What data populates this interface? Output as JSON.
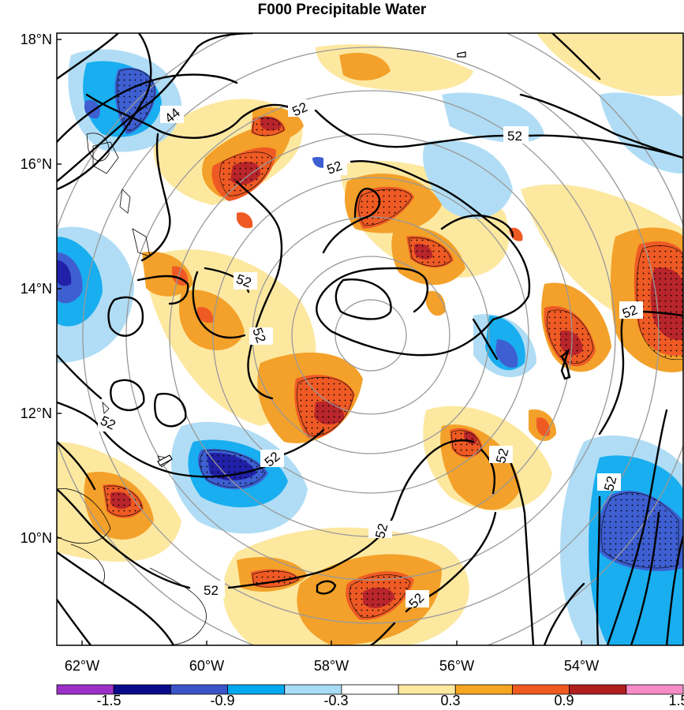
{
  "title": "F000 Precipitable Water",
  "lat_labels": [
    "18°N",
    "16°N",
    "14°N",
    "12°N",
    "10°N"
  ],
  "lon_labels": [
    "62°W",
    "60°W",
    "58°W",
    "56°W",
    "54°W"
  ],
  "contour_labels": [
    "44",
    "52",
    "52",
    "52",
    "52",
    "52",
    "52",
    "52",
    "52",
    "52",
    "52",
    "52",
    "52",
    "52"
  ],
  "colorbar": {
    "labels": [
      "-1.5",
      "-0.9",
      "-0.3",
      "0.3",
      "0.9",
      "1.5"
    ],
    "colors": [
      "#9b30c7",
      "#0a0a8c",
      "#3b55c9",
      "#00a8f0",
      "#a8dcf5",
      "#ffffff",
      "#ffe9a0",
      "#f5a623",
      "#f05a1e",
      "#b01e1e",
      "#f58cc8"
    ]
  },
  "palette": {
    "deep_blue": "#2020a8",
    "mid_blue": "#3e5fd1",
    "cyan": "#18aeef",
    "light_blue": "#b0ddf5",
    "light_yellow": "#fde8a0",
    "orange": "#f3a12a",
    "red_orange": "#ef5a24",
    "dark_red": "#b8252a",
    "contour": "#000000",
    "range_ring": "#999999"
  }
}
